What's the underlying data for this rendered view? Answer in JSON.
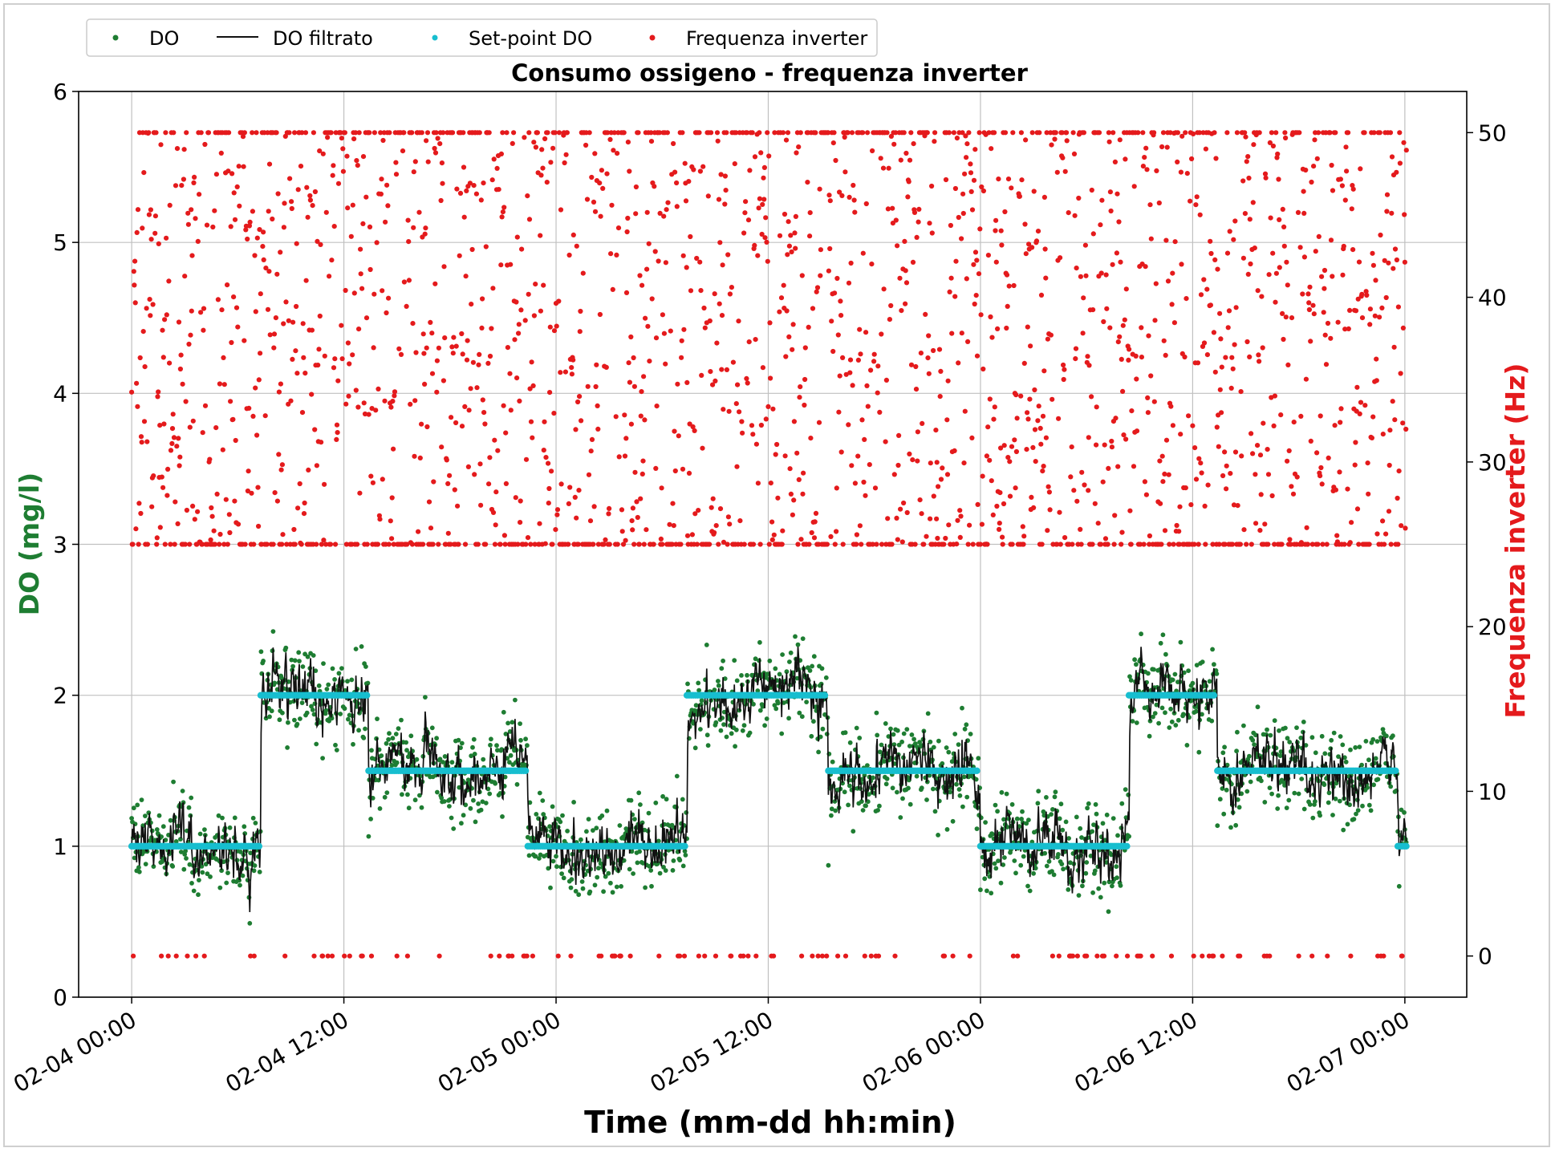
{
  "colors": {
    "do_points": "#1e7d32",
    "do_filtered": "#111111",
    "setpoint": "#17becf",
    "inverter": "#e41a1c",
    "grid": "#c0c0c0",
    "axis": "#000000",
    "ylabel_left": "#1e7d32",
    "ylabel_right": "#e41a1c"
  },
  "chart_data": {
    "type": "scatter",
    "title": "Consumo ossigeno - frequenza inverter",
    "xlabel": "Time (mm-dd hh:min)",
    "ylabel_left": "DO (mg/l)",
    "ylabel_right": "Frequenza inverter (Hz)",
    "x_range_hours": [
      -3,
      75.5
    ],
    "x_ticks": [
      {
        "hour": 0,
        "label": "02-04 00:00"
      },
      {
        "hour": 12,
        "label": "02-04 12:00"
      },
      {
        "hour": 24,
        "label": "02-05 00:00"
      },
      {
        "hour": 36,
        "label": "02-05 12:00"
      },
      {
        "hour": 48,
        "label": "02-06 00:00"
      },
      {
        "hour": 60,
        "label": "02-06 12:00"
      },
      {
        "hour": 72,
        "label": "02-07 00:00"
      }
    ],
    "ylim_left": [
      0,
      6
    ],
    "yticks_left": [
      "0",
      "1",
      "2",
      "3",
      "4",
      "5",
      "6"
    ],
    "ylim_right": [
      -2.5,
      52.5
    ],
    "yticks_right": [
      "0",
      "10",
      "20",
      "30",
      "40",
      "50"
    ],
    "grid": true,
    "legend_position": "top-left, above plot",
    "legend": [
      {
        "label": "DO",
        "marker": "dot"
      },
      {
        "label": "DO filtrato",
        "marker": "line"
      },
      {
        "label": "Set-point DO",
        "marker": "dot"
      },
      {
        "label": "Frequenza inverter",
        "marker": "dot"
      }
    ],
    "setpoint_segments": [
      {
        "start_hour": 0,
        "end_hour": 7.2,
        "value": 1.0
      },
      {
        "start_hour": 7.3,
        "end_hour": 13.3,
        "value": 2.0
      },
      {
        "start_hour": 13.4,
        "end_hour": 22.3,
        "value": 1.5
      },
      {
        "start_hour": 22.4,
        "end_hour": 31.3,
        "value": 1.0
      },
      {
        "start_hour": 31.4,
        "end_hour": 39.3,
        "value": 2.0
      },
      {
        "start_hour": 39.4,
        "end_hour": 47.9,
        "value": 1.5
      },
      {
        "start_hour": 48.0,
        "end_hour": 56.3,
        "value": 1.0
      },
      {
        "start_hour": 56.4,
        "end_hour": 61.3,
        "value": 2.0
      },
      {
        "start_hour": 61.4,
        "end_hour": 71.5,
        "value": 1.5
      },
      {
        "start_hour": 71.6,
        "end_hour": 72.1,
        "value": 1.0
      }
    ],
    "do_noise_sd": 0.28,
    "sample_interval_hours": 0.04,
    "inverter_hz_levels": {
      "min": 0,
      "low_clip": 25,
      "high_clip": 50
    }
  }
}
